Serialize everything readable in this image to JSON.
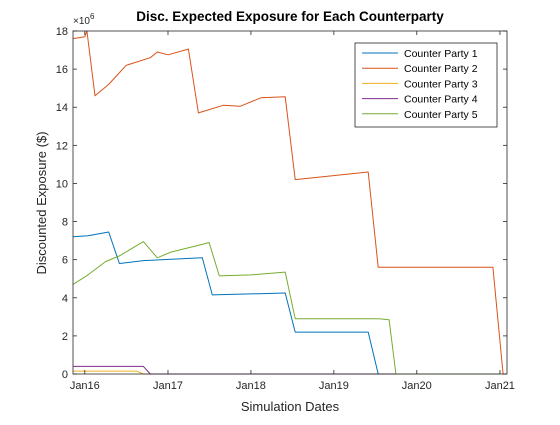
{
  "chart_data": {
    "type": "line",
    "title": "Disc. Expected Exposure for Each Counterparty",
    "xlabel": "Simulation Dates",
    "ylabel": "Discounted Exposure ($)",
    "y_exponent_label": "×10",
    "y_exponent_power": "6",
    "y_multiplier": 1000000,
    "xlim": [
      "2015-11-10",
      "2021-02-01"
    ],
    "ylim": [
      0,
      18
    ],
    "x_ticks": [
      {
        "date": "2016-01-01",
        "label": "Jan16"
      },
      {
        "date": "2017-01-01",
        "label": "Jan17"
      },
      {
        "date": "2018-01-01",
        "label": "Jan18"
      },
      {
        "date": "2019-01-01",
        "label": "Jan19"
      },
      {
        "date": "2020-01-01",
        "label": "Jan20"
      },
      {
        "date": "2021-01-01",
        "label": "Jan21"
      }
    ],
    "y_ticks": [
      0,
      2,
      4,
      6,
      8,
      10,
      12,
      14,
      16,
      18
    ],
    "grid": false,
    "legend_position": "top-right",
    "series": [
      {
        "name": "Counter Party 1",
        "color": "#0072BD",
        "points": [
          [
            "2015-11-10",
            7.2
          ],
          [
            "2016-01-15",
            7.25
          ],
          [
            "2016-04-15",
            7.45
          ],
          [
            "2016-06-01",
            5.8
          ],
          [
            "2016-09-15",
            5.95
          ],
          [
            "2017-06-01",
            6.1
          ],
          [
            "2017-07-15",
            4.15
          ],
          [
            "2018-06-01",
            4.25
          ],
          [
            "2018-07-15",
            2.2
          ],
          [
            "2019-06-01",
            2.2
          ],
          [
            "2019-07-15",
            0
          ],
          [
            "2021-01-01",
            0
          ]
        ]
      },
      {
        "name": "Counter Party 2",
        "color": "#D95319",
        "points": [
          [
            "2015-11-10",
            17.6
          ],
          [
            "2016-01-01",
            17.7
          ],
          [
            "2016-01-10",
            18.0
          ],
          [
            "2016-02-15",
            14.6
          ],
          [
            "2016-04-15",
            15.2
          ],
          [
            "2016-07-01",
            16.2
          ],
          [
            "2016-10-15",
            16.6
          ],
          [
            "2016-11-15",
            16.9
          ],
          [
            "2017-01-01",
            16.75
          ],
          [
            "2017-04-01",
            17.05
          ],
          [
            "2017-05-15",
            13.7
          ],
          [
            "2017-09-01",
            14.1
          ],
          [
            "2017-11-15",
            14.05
          ],
          [
            "2018-02-15",
            14.5
          ],
          [
            "2018-06-01",
            14.55
          ],
          [
            "2018-07-15",
            10.2
          ],
          [
            "2019-06-01",
            10.6
          ],
          [
            "2019-07-15",
            5.6
          ],
          [
            "2020-12-01",
            5.6
          ],
          [
            "2021-01-15",
            0
          ],
          [
            "2021-02-01",
            0
          ]
        ]
      },
      {
        "name": "Counter Party 3",
        "color": "#EDB120",
        "points": [
          [
            "2015-11-10",
            0.15
          ],
          [
            "2016-08-15",
            0.15
          ],
          [
            "2016-09-15",
            0
          ],
          [
            "2021-01-01",
            0
          ]
        ]
      },
      {
        "name": "Counter Party 4",
        "color": "#7E2F8E",
        "points": [
          [
            "2015-11-10",
            0.4
          ],
          [
            "2016-09-15",
            0.4
          ],
          [
            "2016-10-15",
            0
          ],
          [
            "2021-01-01",
            0
          ]
        ]
      },
      {
        "name": "Counter Party 5",
        "color": "#77AC30",
        "points": [
          [
            "2015-11-10",
            4.7
          ],
          [
            "2016-01-15",
            5.2
          ],
          [
            "2016-04-01",
            5.9
          ],
          [
            "2016-06-01",
            6.2
          ],
          [
            "2016-09-15",
            6.95
          ],
          [
            "2016-11-15",
            6.1
          ],
          [
            "2017-01-15",
            6.4
          ],
          [
            "2017-06-01",
            6.8
          ],
          [
            "2017-07-01",
            6.9
          ],
          [
            "2017-08-15",
            5.15
          ],
          [
            "2018-01-01",
            5.2
          ],
          [
            "2018-06-01",
            5.35
          ],
          [
            "2018-07-15",
            2.9
          ],
          [
            "2019-06-01",
            2.9
          ],
          [
            "2019-07-15",
            2.9
          ],
          [
            "2019-09-01",
            2.85
          ],
          [
            "2019-10-01",
            0
          ],
          [
            "2021-01-01",
            0
          ]
        ]
      }
    ]
  }
}
